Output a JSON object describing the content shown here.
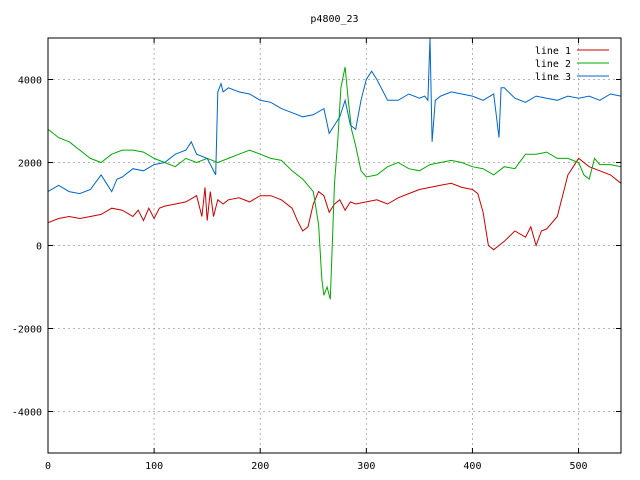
{
  "chart_data": {
    "type": "line",
    "title": "p4800_23",
    "xlabel": "",
    "ylabel": "",
    "xlim": [
      0,
      540
    ],
    "ylim": [
      -5000,
      5000
    ],
    "xticks": [
      0,
      100,
      200,
      300,
      400,
      500
    ],
    "yticks": [
      -4000,
      -2000,
      0,
      2000,
      4000
    ],
    "grid": true,
    "legend_position": "top-right",
    "series": [
      {
        "name": "line 1",
        "color": "#cc0000",
        "x": [
          0,
          10,
          20,
          30,
          40,
          50,
          60,
          70,
          80,
          85,
          90,
          95,
          100,
          105,
          110,
          120,
          130,
          140,
          145,
          148,
          150,
          153,
          156,
          160,
          165,
          170,
          180,
          190,
          200,
          210,
          220,
          230,
          235,
          240,
          245,
          250,
          255,
          260,
          265,
          270,
          275,
          280,
          285,
          290,
          300,
          310,
          320,
          330,
          340,
          350,
          360,
          370,
          380,
          390,
          400,
          405,
          410,
          415,
          420,
          425,
          430,
          440,
          450,
          455,
          460,
          465,
          470,
          480,
          490,
          495,
          500,
          510,
          520,
          530,
          540
        ],
        "y": [
          550,
          650,
          700,
          650,
          700,
          750,
          900,
          850,
          700,
          850,
          600,
          900,
          650,
          900,
          950,
          1000,
          1050,
          1200,
          700,
          1400,
          600,
          1300,
          700,
          1100,
          1000,
          1100,
          1150,
          1050,
          1200,
          1200,
          1100,
          900,
          600,
          350,
          450,
          1000,
          1300,
          1200,
          800,
          1000,
          1100,
          850,
          1050,
          1000,
          1050,
          1100,
          1000,
          1150,
          1250,
          1350,
          1400,
          1450,
          1500,
          1400,
          1350,
          1250,
          800,
          0,
          -100,
          0,
          100,
          350,
          200,
          450,
          0,
          350,
          400,
          700,
          1700,
          1900,
          2100,
          1900,
          1800,
          1700,
          1500
        ]
      },
      {
        "name": "line 2",
        "color": "#00aa00",
        "x": [
          0,
          10,
          20,
          30,
          40,
          50,
          60,
          70,
          80,
          90,
          100,
          110,
          120,
          130,
          140,
          150,
          160,
          170,
          180,
          190,
          200,
          210,
          220,
          230,
          240,
          250,
          255,
          258,
          260,
          263,
          266,
          270,
          273,
          276,
          280,
          283,
          286,
          290,
          295,
          300,
          310,
          320,
          330,
          340,
          350,
          360,
          370,
          380,
          390,
          400,
          410,
          420,
          430,
          440,
          450,
          460,
          470,
          480,
          490,
          500,
          505,
          510,
          515,
          520,
          530,
          540
        ],
        "y": [
          2800,
          2600,
          2500,
          2300,
          2100,
          2000,
          2200,
          2300,
          2300,
          2250,
          2100,
          2000,
          1900,
          2100,
          2000,
          2100,
          2000,
          2100,
          2200,
          2300,
          2200,
          2100,
          2050,
          1800,
          1600,
          1300,
          500,
          -800,
          -1200,
          -1000,
          -1300,
          1500,
          2500,
          3800,
          4300,
          3500,
          2800,
          2400,
          1800,
          1650,
          1700,
          1900,
          2000,
          1850,
          1800,
          1950,
          2000,
          2050,
          2000,
          1900,
          1850,
          1700,
          1900,
          1850,
          2200,
          2200,
          2250,
          2100,
          2100,
          2000,
          1700,
          1600,
          2100,
          1950,
          1950,
          1900
        ]
      },
      {
        "name": "line 3",
        "color": "#0066cc",
        "x": [
          0,
          10,
          20,
          30,
          40,
          50,
          55,
          60,
          65,
          70,
          80,
          90,
          100,
          110,
          120,
          130,
          135,
          140,
          150,
          158,
          160,
          163,
          165,
          170,
          180,
          190,
          200,
          210,
          220,
          230,
          240,
          250,
          260,
          265,
          270,
          275,
          280,
          285,
          290,
          295,
          300,
          305,
          310,
          320,
          330,
          340,
          350,
          355,
          358,
          360,
          362,
          365,
          370,
          380,
          390,
          400,
          410,
          420,
          425,
          427,
          430,
          440,
          450,
          460,
          470,
          480,
          490,
          500,
          510,
          520,
          530,
          540
        ],
        "y": [
          1300,
          1450,
          1300,
          1250,
          1350,
          1700,
          1500,
          1300,
          1600,
          1650,
          1850,
          1800,
          1950,
          2000,
          2200,
          2300,
          2500,
          2200,
          2100,
          1700,
          3700,
          3900,
          3700,
          3800,
          3700,
          3650,
          3500,
          3450,
          3300,
          3200,
          3100,
          3150,
          3300,
          2700,
          2900,
          3100,
          3500,
          2900,
          2800,
          3500,
          4000,
          4200,
          4000,
          3500,
          3500,
          3650,
          3550,
          3600,
          3500,
          5000,
          2500,
          3500,
          3600,
          3700,
          3650,
          3600,
          3500,
          3650,
          2600,
          3800,
          3800,
          3550,
          3450,
          3600,
          3550,
          3500,
          3600,
          3550,
          3600,
          3500,
          3650,
          3600
        ]
      }
    ]
  }
}
